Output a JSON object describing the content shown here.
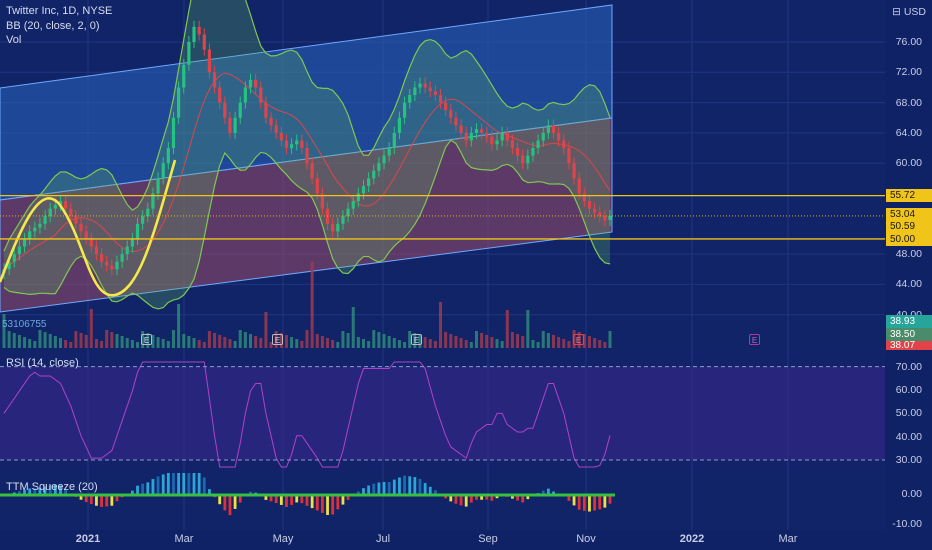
{
  "header": {
    "symbol_title": "Twitter Inc, 1D, NYSE",
    "bb_legend": "BB (20, close, 2, 0)",
    "vol_legend": "Vol",
    "currency": "USD",
    "volume_value": "53106755"
  },
  "price_axis": {
    "ticks": [
      "76.00",
      "72.00",
      "68.00",
      "64.00",
      "60.00",
      "55.72",
      "53.04",
      "50.59",
      "50.00",
      "48.00",
      "44.00",
      "40.00"
    ],
    "badges": {
      "resistance": "55.72",
      "last": "53.04",
      "bb_mid": "50.59",
      "support": "50.00",
      "vol1": "38.93",
      "vol2": "38.50",
      "vol3": "38.07"
    }
  },
  "rsi": {
    "legend": "RSI (14, close)",
    "ticks": [
      "70.00",
      "60.00",
      "50.00",
      "40.00",
      "30.00"
    ]
  },
  "ttm": {
    "legend": "TTM Squeeze (20)",
    "ticks": [
      "0.00",
      "-10.00"
    ]
  },
  "time_axis": [
    "2021",
    "Mar",
    "May",
    "Jul",
    "Sep",
    "Nov",
    "2022",
    "Mar"
  ],
  "earnings_marker": "E",
  "colors": {
    "background": "#0f2266",
    "up_candle": "#26c281",
    "down_candle": "#e0444a",
    "bb_band": "#7ec850",
    "channel_upper": "#2f6fc4",
    "channel_lower": "#b04a5a",
    "support_line": "#f0c419",
    "rsi_line": "#b042c8",
    "curve": "#f5e84a"
  },
  "chart_data": {
    "type": "candlestick",
    "title": "Twitter Inc, 1D, NYSE",
    "y_range": [
      38,
      79
    ],
    "resistance": 55.72,
    "support": 50.0,
    "last_close": 53.04,
    "closes": [
      46,
      47,
      48,
      49,
      50,
      51,
      51.5,
      52,
      53,
      54,
      54.5,
      55,
      54,
      53,
      52,
      51,
      50,
      49,
      48,
      47,
      46.5,
      46,
      47,
      48,
      49,
      50,
      52,
      53,
      54,
      56,
      58,
      60,
      62,
      66,
      70,
      73,
      76,
      78,
      77,
      75,
      72,
      70,
      68,
      66,
      64,
      66,
      68,
      70,
      71,
      70,
      68,
      66,
      65,
      64,
      63,
      62,
      62.5,
      63,
      62,
      60,
      58,
      56,
      54,
      52,
      51,
      52,
      53,
      54,
      55,
      56,
      57,
      58,
      59,
      60,
      61,
      62,
      64,
      66,
      68,
      69,
      70,
      70.5,
      70,
      69.5,
      69,
      68,
      67,
      66,
      65,
      64,
      63,
      64,
      64.5,
      64,
      63.5,
      62.5,
      63,
      64,
      63,
      62,
      61,
      60,
      61,
      62,
      63,
      64,
      65,
      64,
      63,
      62,
      60,
      58,
      56,
      55,
      54,
      53.5,
      53,
      52.5,
      53.04
    ],
    "rsi_range": [
      25,
      75
    ]
  }
}
